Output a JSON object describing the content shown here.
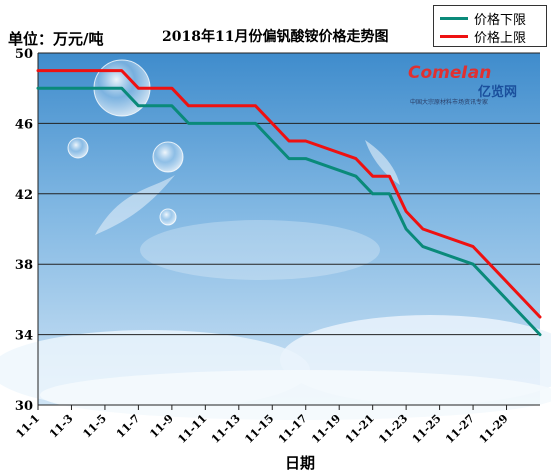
{
  "unit_label": "单位：万元/吨",
  "chart_data": {
    "type": "line",
    "title": "2018年11月份偏钒酸铵价格走势图",
    "xlabel": "日期",
    "ylabel": "单位：万元/吨",
    "ylim": [
      30,
      50
    ],
    "yticks": [
      30,
      34,
      38,
      42,
      46,
      50
    ],
    "x_start": "11-1",
    "x_tick_labels": [
      "11-1",
      "11-3",
      "11-5",
      "11-7",
      "11-9",
      "11-11",
      "11-13",
      "11-15",
      "11-17",
      "11-19",
      "11-21",
      "11-23",
      "11-25",
      "11-27",
      "11-29"
    ],
    "grid": "horizontal",
    "legend_position": "top-right",
    "series": [
      {
        "name": "价格下限",
        "color": "#0a8a7a",
        "points": [
          [
            "11-1",
            48
          ],
          [
            "11-6",
            48
          ],
          [
            "11-7",
            47
          ],
          [
            "11-9",
            47
          ],
          [
            "11-10",
            46
          ],
          [
            "11-14",
            46
          ],
          [
            "11-16",
            44
          ],
          [
            "11-17",
            44
          ],
          [
            "11-20",
            43
          ],
          [
            "11-21",
            42
          ],
          [
            "11-22",
            42
          ],
          [
            "11-23",
            40
          ],
          [
            "11-24",
            39
          ],
          [
            "11-27",
            38
          ],
          [
            "11-30",
            35
          ],
          [
            "11-31",
            34
          ]
        ]
      },
      {
        "name": "价格上限",
        "color": "#ee1111",
        "points": [
          [
            "11-1",
            49
          ],
          [
            "11-6",
            49
          ],
          [
            "11-7",
            48
          ],
          [
            "11-9",
            48
          ],
          [
            "11-10",
            47
          ],
          [
            "11-14",
            47
          ],
          [
            "11-16",
            45
          ],
          [
            "11-17",
            45
          ],
          [
            "11-20",
            44
          ],
          [
            "11-21",
            43
          ],
          [
            "11-22",
            43
          ],
          [
            "11-23",
            41
          ],
          [
            "11-24",
            40
          ],
          [
            "11-27",
            39
          ],
          [
            "11-30",
            36
          ],
          [
            "11-31",
            35
          ]
        ]
      }
    ]
  },
  "watermark": {
    "brand": "ComeIan",
    "brand_cn": "亿览网",
    "tagline": "中国大宗原材料市场资讯专家"
  }
}
